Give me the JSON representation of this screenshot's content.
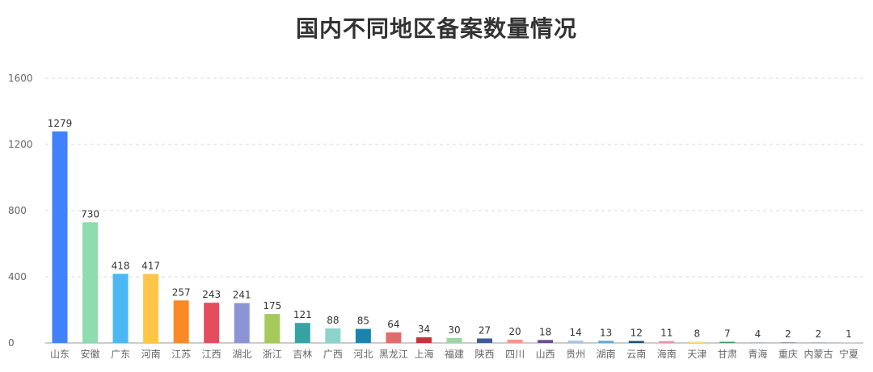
{
  "chart_data": {
    "type": "bar",
    "title": "国内不同地区备案数量情况",
    "xlabel": "",
    "ylabel": "",
    "ylim": [
      0,
      1600
    ],
    "yticks": [
      0,
      400,
      800,
      1200,
      1600
    ],
    "grid": true,
    "legend": "none",
    "categories": [
      "山东",
      "安徽",
      "广东",
      "河南",
      "江苏",
      "江西",
      "湖北",
      "浙江",
      "吉林",
      "广西",
      "河北",
      "黑龙江",
      "上海",
      "福建",
      "陕西",
      "四川",
      "山西",
      "贵州",
      "湖南",
      "云南",
      "海南",
      "天津",
      "甘肃",
      "青海",
      "重庆",
      "内蒙古",
      "宁夏"
    ],
    "values": [
      1279,
      730,
      418,
      417,
      257,
      243,
      241,
      175,
      121,
      88,
      85,
      64,
      34,
      30,
      27,
      20,
      18,
      14,
      13,
      12,
      11,
      8,
      7,
      4,
      2,
      2,
      1
    ],
    "colors": [
      "#3f82fb",
      "#8fdcae",
      "#4bb8f5",
      "#fec548",
      "#fa8a24",
      "#e44c5d",
      "#8c95d4",
      "#a5c95a",
      "#36a3a3",
      "#8dd3cb",
      "#1a84b1",
      "#e36b6b",
      "#c8323c",
      "#9bd6a2",
      "#3f5b9c",
      "#f2998a",
      "#6a4c93",
      "#a4c5e6",
      "#5fa8d3",
      "#1f4e79",
      "#f08cad",
      "#f6e38a",
      "#3c9a5f",
      "#b0bec5",
      "#90a4ae",
      "#b0bec5",
      "#cfd8dc"
    ]
  }
}
